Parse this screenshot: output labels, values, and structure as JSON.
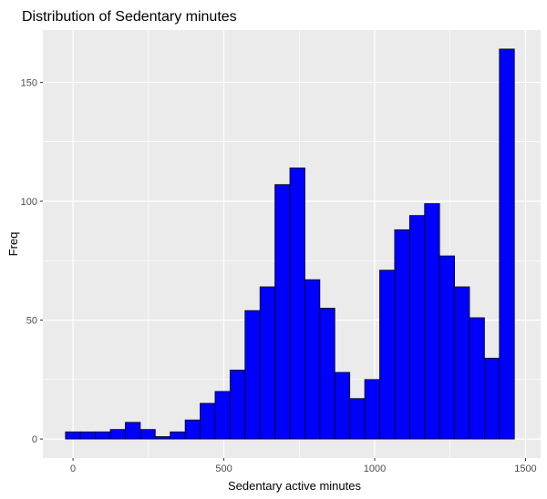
{
  "chart_data": {
    "type": "bar",
    "subtype": "histogram",
    "title": "Distribution of Sedentary minutes",
    "xlabel": "Sedentary active minutes",
    "ylabel": "Freq",
    "bin_width": 49.6,
    "bin_start": -25,
    "counts": [
      3,
      3,
      3,
      4,
      7,
      4,
      1,
      3,
      8,
      15,
      20,
      29,
      54,
      64,
      107,
      114,
      67,
      55,
      28,
      17,
      25,
      71,
      88,
      94,
      99,
      77,
      64,
      51,
      34,
      164
    ],
    "xlim": [
      -100,
      1550
    ],
    "ylim": [
      -8,
      172
    ],
    "x_ticks": [
      0,
      500,
      1000,
      1500
    ],
    "x_tick_labels": [
      "0",
      "500",
      "1000",
      "1500"
    ],
    "y_ticks": [
      0,
      50,
      100,
      150
    ],
    "y_tick_labels": [
      "0",
      "50",
      "100",
      "150"
    ],
    "bar_fill": "#0000ff",
    "bar_stroke": "#000000",
    "panel_background": "#ebebeb",
    "grid": true,
    "grid_color": "#ffffff"
  }
}
